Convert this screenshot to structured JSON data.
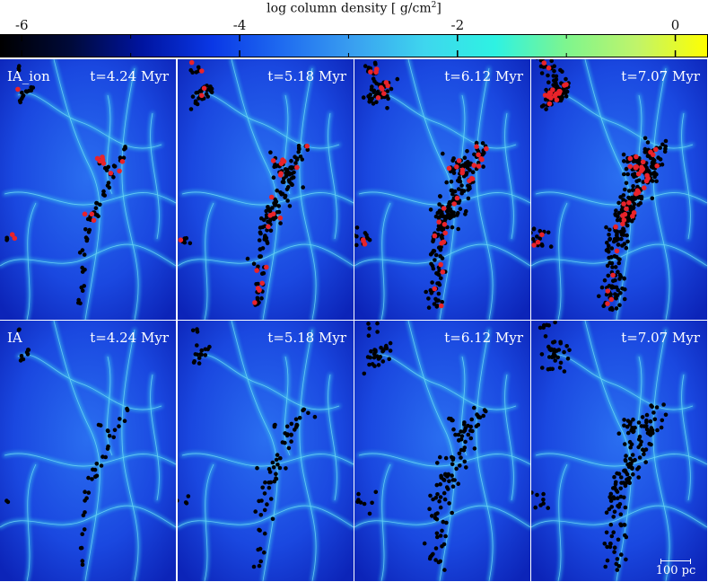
{
  "colorbar": {
    "title_text": "log column density [ g/cm",
    "title_sup": "2",
    "title_close": "]",
    "min": -6.2,
    "max": 0.3,
    "tick_labels": [
      "-6",
      "-4",
      "-2",
      "0"
    ],
    "tick_values": [
      -6,
      -4,
      -2,
      0
    ],
    "minor_ticks": [
      -5,
      -3,
      -1
    ],
    "colors": [
      "#000000",
      "#000a3a",
      "#0014a0",
      "#0a38e6",
      "#1f6cf0",
      "#3aa0f0",
      "#3ed6ee",
      "#2ef2e2",
      "#7ef58e",
      "#c0f46a",
      "#ffff00"
    ]
  },
  "panels": [
    {
      "row": "IA_ion",
      "label": "IA_ion",
      "time": "t=4.24 Myr",
      "red": true,
      "stage": 0
    },
    {
      "row": "IA_ion",
      "label": "",
      "time": "t=5.18 Myr",
      "red": true,
      "stage": 1
    },
    {
      "row": "IA_ion",
      "label": "",
      "time": "t=6.12 Myr",
      "red": true,
      "stage": 2
    },
    {
      "row": "IA_ion",
      "label": "",
      "time": "t=7.07 Myr",
      "red": true,
      "stage": 3
    },
    {
      "row": "IA",
      "label": "IA",
      "time": "t=4.24 Myr",
      "red": false,
      "stage": 0
    },
    {
      "row": "IA",
      "label": "",
      "time": "t=5.18 Myr",
      "red": false,
      "stage": 1
    },
    {
      "row": "IA",
      "label": "",
      "time": "t=6.12 Myr",
      "red": false,
      "stage": 2
    },
    {
      "row": "IA",
      "label": "",
      "time": "t=7.07 Myr",
      "red": false,
      "stage": 3
    }
  ],
  "scalebar": {
    "label": "100 pc"
  },
  "colors": {
    "background": "#1a48e0",
    "filament": "#3ecbf0",
    "sink_black": "#000000",
    "sink_red": "#e8232a"
  }
}
